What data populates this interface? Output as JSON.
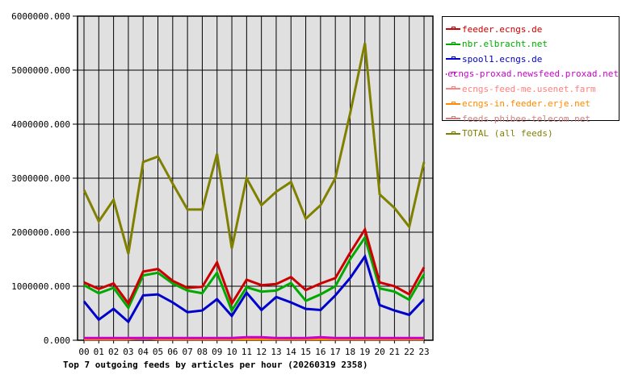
{
  "chart_data": {
    "type": "line",
    "title": "Top 7 outgoing feeds by articles per hour (20260319 2358)",
    "xlabel": "",
    "ylabel": "",
    "ylim": [
      0,
      6000000
    ],
    "yticks": [
      "0.000",
      "1000000.000",
      "2000000.000",
      "3000000.000",
      "4000000.000",
      "5000000.000",
      "6000000.000"
    ],
    "x": [
      "00",
      "01",
      "02",
      "03",
      "04",
      "05",
      "06",
      "07",
      "08",
      "09",
      "10",
      "11",
      "12",
      "13",
      "14",
      "15",
      "16",
      "17",
      "18",
      "19",
      "20",
      "21",
      "22",
      "23"
    ],
    "grid": true,
    "legend_position": "right",
    "series": [
      {
        "name": "feeder.ecngs.de",
        "color": "#cc0000",
        "values": [
          1070000,
          950000,
          1050000,
          680000,
          1270000,
          1320000,
          1100000,
          970000,
          990000,
          1440000,
          680000,
          1120000,
          1020000,
          1040000,
          1170000,
          930000,
          1050000,
          1150000,
          1620000,
          2050000,
          1070000,
          1000000,
          850000,
          1350000
        ]
      },
      {
        "name": "nbr.elbracht.net",
        "color": "#00aa00",
        "values": [
          1020000,
          870000,
          970000,
          600000,
          1200000,
          1250000,
          1050000,
          920000,
          870000,
          1250000,
          550000,
          980000,
          900000,
          920000,
          1060000,
          730000,
          850000,
          1000000,
          1500000,
          1900000,
          960000,
          900000,
          750000,
          1220000
        ]
      },
      {
        "name": "spool1.ecngs.de",
        "color": "#0000cc",
        "values": [
          720000,
          380000,
          580000,
          340000,
          830000,
          850000,
          700000,
          520000,
          550000,
          760000,
          450000,
          880000,
          560000,
          800000,
          700000,
          580000,
          560000,
          830000,
          1150000,
          1550000,
          650000,
          550000,
          470000,
          760000
        ]
      },
      {
        "name": "ecngs-proxad.newsfeed.proxad.net",
        "color": "#cc00cc",
        "values": [
          40000,
          40000,
          40000,
          40000,
          40000,
          40000,
          40000,
          40000,
          40000,
          40000,
          40000,
          55000,
          55000,
          40000,
          40000,
          40000,
          55000,
          40000,
          40000,
          40000,
          40000,
          40000,
          40000,
          40000
        ]
      },
      {
        "name": "ecngs-feed-me.usenet.farm",
        "color": "#ff8080",
        "values": [
          30000,
          30000,
          30000,
          30000,
          30000,
          30000,
          30000,
          30000,
          30000,
          35000,
          30000,
          30000,
          40000,
          30000,
          30000,
          30000,
          30000,
          30000,
          30000,
          30000,
          35000,
          35000,
          30000,
          35000
        ]
      },
      {
        "name": "ecngs-in.feeder.erje.net",
        "color": "#ff8800",
        "values": [
          20000,
          20000,
          20000,
          20000,
          40000,
          20000,
          20000,
          20000,
          20000,
          20000,
          20000,
          20000,
          20000,
          20000,
          20000,
          20000,
          20000,
          20000,
          20000,
          20000,
          20000,
          20000,
          20000,
          20000
        ]
      },
      {
        "name": "feeds.phibee-telecom.net",
        "color": "#cc8080",
        "values": [
          25000,
          25000,
          25000,
          25000,
          25000,
          25000,
          25000,
          25000,
          25000,
          25000,
          25000,
          25000,
          25000,
          25000,
          25000,
          25000,
          25000,
          25000,
          25000,
          25000,
          25000,
          25000,
          25000,
          25000
        ]
      },
      {
        "name": "TOTAL (all feeds)",
        "color": "#808000",
        "values": [
          2780000,
          2200000,
          2600000,
          1600000,
          3300000,
          3400000,
          2900000,
          2420000,
          2420000,
          3450000,
          1700000,
          3000000,
          2500000,
          2750000,
          2930000,
          2250000,
          2500000,
          3000000,
          4200000,
          5500000,
          2700000,
          2450000,
          2100000,
          3300000
        ]
      }
    ]
  },
  "legend": {
    "items": [
      {
        "label": "feeder.ecngs.de",
        "color": "#cc0000"
      },
      {
        "label": "nbr.elbracht.net",
        "color": "#00aa00"
      },
      {
        "label": "spool1.ecngs.de",
        "color": "#0000cc"
      },
      {
        "label": "ecngs-proxad.newsfeed.proxad.net",
        "color": "#cc00cc"
      },
      {
        "label": "ecngs-feed-me.usenet.farm",
        "color": "#ff8080"
      },
      {
        "label": "ecngs-in.feeder.erje.net",
        "color": "#ff8800"
      },
      {
        "label": "feeds.phibee-telecom.net",
        "color": "#cc8080"
      },
      {
        "label": "TOTAL (all feeds)",
        "color": "#808000"
      }
    ]
  },
  "colors": {
    "plot_bg": "#e0e0e0",
    "grid": "#000000"
  }
}
